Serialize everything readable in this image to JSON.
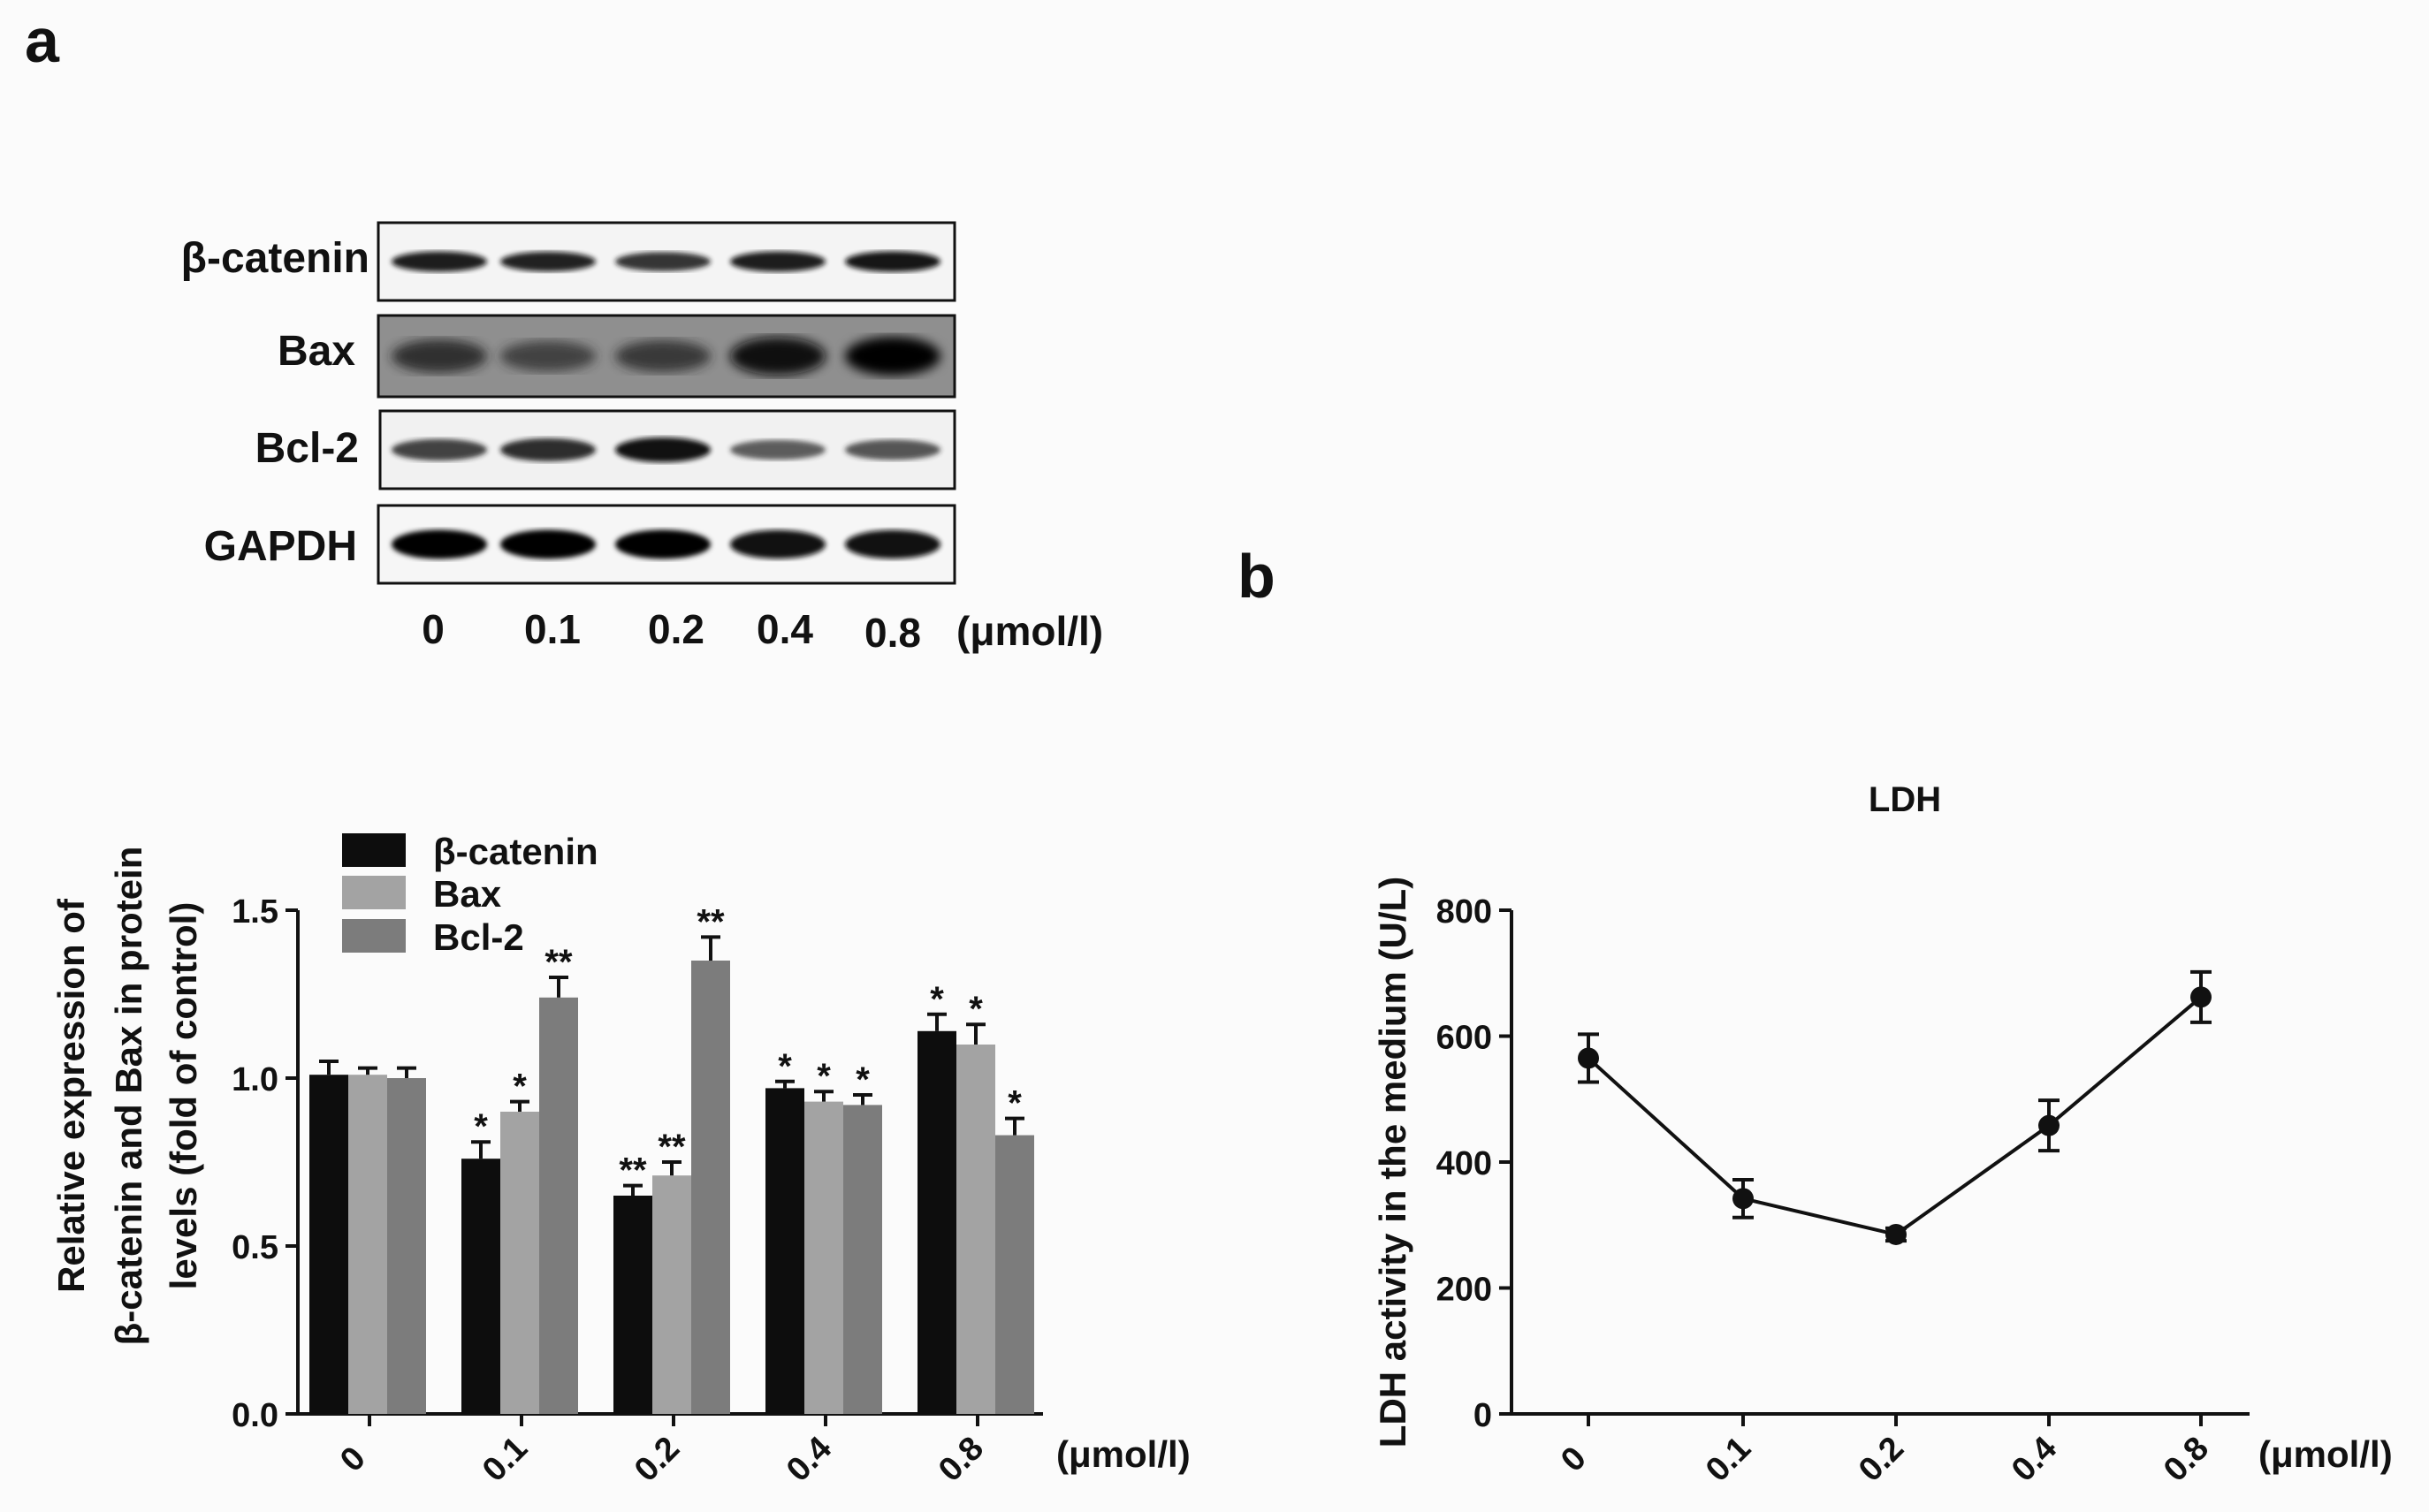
{
  "panel_labels": {
    "a": "a",
    "b": "b"
  },
  "western_blot": {
    "row_labels": [
      "β-catenin",
      "Bax",
      "Bcl-2",
      "GAPDH"
    ],
    "lane_labels": [
      "0",
      "0.1",
      "0.2",
      "0.4",
      "0.8"
    ],
    "unit": "(μmol/l)",
    "band_intensity": [
      [
        0.85,
        0.8,
        0.7,
        0.85,
        0.9
      ],
      [
        0.6,
        0.4,
        0.5,
        0.95,
        1.0
      ],
      [
        0.6,
        0.75,
        0.95,
        0.4,
        0.45
      ],
      [
        1.0,
        1.0,
        1.0,
        0.95,
        0.95
      ]
    ]
  },
  "chart_data": [
    {
      "type": "bar",
      "title": "",
      "xlabel": "(μmol/l)",
      "ylabel_lines": [
        "Relative expression of",
        "β-catenin and Bax in protein",
        "levels (fold of control)"
      ],
      "categories": [
        "0",
        "0.1",
        "0.2",
        "0.4",
        "0.8"
      ],
      "ylim": [
        0,
        1.5
      ],
      "yticks": [
        "0.0",
        "0.5",
        "1.0",
        "1.5"
      ],
      "legend_position": "top-left",
      "series": [
        {
          "name": "β-catenin",
          "color": "#0d0d0d",
          "values": [
            1.01,
            0.76,
            0.65,
            0.97,
            1.14
          ],
          "errors": [
            0.04,
            0.05,
            0.03,
            0.02,
            0.05
          ],
          "sig": [
            "",
            "*",
            "**",
            "*",
            "*"
          ]
        },
        {
          "name": "Bax",
          "color": "#a3a3a3",
          "values": [
            1.01,
            0.9,
            0.71,
            0.93,
            1.1
          ],
          "errors": [
            0.02,
            0.03,
            0.04,
            0.03,
            0.06
          ],
          "sig": [
            "",
            "*",
            "**",
            "*",
            "*"
          ]
        },
        {
          "name": "Bcl-2",
          "color": "#7c7c7c",
          "values": [
            1.0,
            1.24,
            1.35,
            0.92,
            0.83
          ],
          "errors": [
            0.03,
            0.06,
            0.07,
            0.03,
            0.05
          ],
          "sig": [
            "",
            "**",
            "**",
            "*",
            "*"
          ]
        }
      ]
    },
    {
      "type": "line",
      "title": "LDH",
      "xlabel": "(μmol/l)",
      "ylabel": "LDH activity in the medium (U/L)",
      "categories": [
        "0",
        "0.1",
        "0.2",
        "0.4",
        "0.8"
      ],
      "ylim": [
        0,
        800
      ],
      "yticks": [
        "0",
        "200",
        "400",
        "600",
        "800"
      ],
      "series": [
        {
          "values": [
            565,
            342,
            285,
            458,
            662
          ],
          "errors": [
            38,
            30,
            10,
            40,
            40
          ]
        }
      ]
    }
  ]
}
